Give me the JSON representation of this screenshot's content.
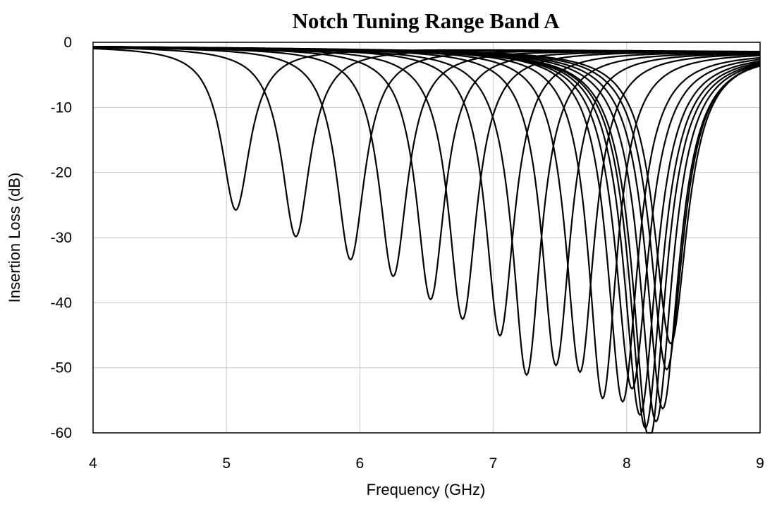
{
  "chart_data": {
    "type": "line",
    "title": "Notch Tuning Range Band A",
    "xlabel": "Frequency (GHz)",
    "ylabel": "Insertion Loss (dB)",
    "xlim": [
      4,
      9
    ],
    "ylim": [
      -60,
      0
    ],
    "x_ticks": [
      "4",
      "5",
      "6",
      "7",
      "8",
      "9"
    ],
    "y_ticks": [
      "0",
      "-10",
      "-20",
      "-30",
      "-40",
      "-50",
      "-60"
    ],
    "grid": true,
    "legend": "none",
    "line_color": "#000000",
    "grid_color": "#c8c8c8",
    "series": [
      {
        "notch_center_ghz": 5.07,
        "min_db": -25.0,
        "width_ghz": 0.13
      },
      {
        "notch_center_ghz": 5.52,
        "min_db": -29.0,
        "width_ghz": 0.13
      },
      {
        "notch_center_ghz": 5.93,
        "min_db": -32.5,
        "width_ghz": 0.13
      },
      {
        "notch_center_ghz": 6.25,
        "min_db": -35.0,
        "width_ghz": 0.13
      },
      {
        "notch_center_ghz": 6.53,
        "min_db": -38.5,
        "width_ghz": 0.13
      },
      {
        "notch_center_ghz": 6.77,
        "min_db": -41.5,
        "width_ghz": 0.13
      },
      {
        "notch_center_ghz": 7.05,
        "min_db": -44.0,
        "width_ghz": 0.13
      },
      {
        "notch_center_ghz": 7.25,
        "min_db": -50.0,
        "width_ghz": 0.13
      },
      {
        "notch_center_ghz": 7.47,
        "min_db": -48.5,
        "width_ghz": 0.13
      },
      {
        "notch_center_ghz": 7.65,
        "min_db": -49.5,
        "width_ghz": 0.13
      },
      {
        "notch_center_ghz": 7.82,
        "min_db": -53.5,
        "width_ghz": 0.13
      },
      {
        "notch_center_ghz": 7.97,
        "min_db": -54.0,
        "width_ghz": 0.14
      },
      {
        "notch_center_ghz": 8.04,
        "min_db": -52.0,
        "width_ghz": 0.15
      },
      {
        "notch_center_ghz": 8.1,
        "min_db": -56.0,
        "width_ghz": 0.15
      },
      {
        "notch_center_ghz": 8.14,
        "min_db": -58.0,
        "width_ghz": 0.15
      },
      {
        "notch_center_ghz": 8.17,
        "min_db": -60.0,
        "width_ghz": 0.15
      },
      {
        "notch_center_ghz": 8.22,
        "min_db": -57.0,
        "width_ghz": 0.15
      },
      {
        "notch_center_ghz": 8.27,
        "min_db": -55.0,
        "width_ghz": 0.15
      },
      {
        "notch_center_ghz": 8.3,
        "min_db": -49.0,
        "width_ghz": 0.15
      },
      {
        "notch_center_ghz": 8.33,
        "min_db": -45.0,
        "width_ghz": 0.15
      }
    ]
  }
}
